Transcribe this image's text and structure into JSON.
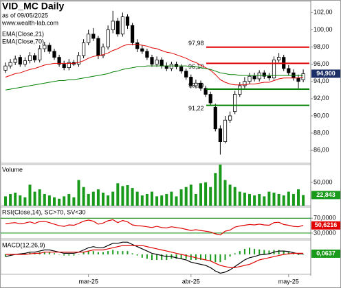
{
  "chart_data": [
    {
      "type": "candlestick",
      "title": "VID_MC Daily",
      "subtitle": "as of 09/05/2025",
      "source": "www.wealth-lab.com",
      "open": [
        95.3,
        95.8,
        96.2,
        96.8,
        96.0,
        96.4,
        97.0,
        96.5,
        97.8,
        98.2,
        97.5,
        96.8,
        96.0,
        95.6,
        96.2,
        96.0,
        97.0,
        98.5,
        99.5,
        99.0,
        97.0,
        98.0,
        100.0,
        101.0,
        99.5,
        101.5,
        100.5,
        98.5,
        97.8,
        97.5,
        96.8,
        96.0,
        96.5,
        95.8,
        95.5,
        96.0,
        95.7,
        95.2,
        94.5,
        93.5,
        93.8,
        93.2,
        92.5,
        91.0,
        88.5,
        87.0,
        89.5,
        90.5,
        92.5,
        93.5,
        94.0,
        94.6,
        94.3,
        95.0,
        94.6,
        94.4,
        96.5,
        96.8,
        95.5,
        95.0,
        94.4,
        94.2
      ],
      "high": [
        96.2,
        96.6,
        97.0,
        97.1,
        96.8,
        97.4,
        97.3,
        98.2,
        98.6,
        98.5,
        97.8,
        97.1,
        96.4,
        96.6,
        96.5,
        97.4,
        98.9,
        100.0,
        100.2,
        99.3,
        98.4,
        100.5,
        102.2,
        101.4,
        102.0,
        101.8,
        100.8,
        98.9,
        98.2,
        97.8,
        97.1,
        96.9,
        96.8,
        96.2,
        96.3,
        96.3,
        96.0,
        95.5,
        94.8,
        94.2,
        94.1,
        93.5,
        92.8,
        91.4,
        88.9,
        90.0,
        90.5,
        92.9,
        93.9,
        94.5,
        95.0,
        95.0,
        95.3,
        95.3,
        95.0,
        96.9,
        97.3,
        97.1,
        95.9,
        95.4,
        94.8,
        95.4
      ],
      "low": [
        95.0,
        95.5,
        95.9,
        95.7,
        95.7,
        96.1,
        96.2,
        96.2,
        97.4,
        97.2,
        96.5,
        95.7,
        95.3,
        95.3,
        95.8,
        95.7,
        96.7,
        98.2,
        98.7,
        96.6,
        96.7,
        97.7,
        99.6,
        99.2,
        99.2,
        100.1,
        98.2,
        97.4,
        97.2,
        96.5,
        95.7,
        95.7,
        95.5,
        95.2,
        95.2,
        95.4,
        94.9,
        94.2,
        93.2,
        93.2,
        92.9,
        92.2,
        91.2,
        88.2,
        85.5,
        86.8,
        89.2,
        90.2,
        92.2,
        93.2,
        93.7,
        94.0,
        94.0,
        94.3,
        94.1,
        94.2,
        96.2,
        95.2,
        94.7,
        94.1,
        93.2,
        93.9
      ],
      "close": [
        95.8,
        96.2,
        96.6,
        96.0,
        96.4,
        97.0,
        96.5,
        97.8,
        98.2,
        97.5,
        96.8,
        96.0,
        95.6,
        96.2,
        96.0,
        97.0,
        98.5,
        99.5,
        99.0,
        97.0,
        98.0,
        100.0,
        101.0,
        99.5,
        101.5,
        100.5,
        98.5,
        97.8,
        97.5,
        96.8,
        96.0,
        96.5,
        95.8,
        95.5,
        96.0,
        95.7,
        95.2,
        94.5,
        93.5,
        93.8,
        93.2,
        92.5,
        91.5,
        88.5,
        87.0,
        89.5,
        90.0,
        92.5,
        93.5,
        94.0,
        94.6,
        94.3,
        95.0,
        94.6,
        94.4,
        96.5,
        96.8,
        95.5,
        95.0,
        94.4,
        94.0,
        94.9
      ],
      "close_labels": [
        null,
        null,
        null,
        null,
        null,
        null,
        null,
        null,
        null,
        null,
        null,
        null,
        null,
        null,
        null,
        null,
        null,
        null,
        null,
        null,
        null,
        null,
        null,
        null,
        null,
        null,
        null,
        null,
        null,
        null,
        null,
        null,
        null,
        null,
        null,
        null,
        null,
        null,
        null,
        null,
        null,
        null,
        null,
        null,
        null,
        null,
        null,
        null,
        null,
        null,
        null,
        null,
        null,
        null,
        null,
        null,
        null,
        null,
        null,
        null,
        null,
        "94,900"
      ],
      "label_color": "#1c2f66",
      "series": [
        {
          "name": "EMA(Close,21)",
          "color": "#e00000",
          "values": [
            94.5,
            94.7,
            94.9,
            95.0,
            95.2,
            95.4,
            95.5,
            95.7,
            95.9,
            96.0,
            96.1,
            96.1,
            96.1,
            96.1,
            96.1,
            96.2,
            96.4,
            96.7,
            96.9,
            97.0,
            97.1,
            97.3,
            97.6,
            97.8,
            98.1,
            98.3,
            98.3,
            98.3,
            98.2,
            98.1,
            97.9,
            97.8,
            97.6,
            97.4,
            97.3,
            97.1,
            96.9,
            96.7,
            96.4,
            96.2,
            95.9,
            95.6,
            95.3,
            94.8,
            94.2,
            93.9,
            93.7,
            93.6,
            93.6,
            93.6,
            93.7,
            93.7,
            93.8,
            93.9,
            93.9,
            94.1,
            94.3,
            94.4,
            94.4,
            94.4,
            94.4,
            94.5
          ]
        },
        {
          "name": "EMA(Close,70)",
          "color": "#008000",
          "values": [
            93.0,
            93.1,
            93.2,
            93.3,
            93.4,
            93.5,
            93.6,
            93.7,
            93.8,
            93.9,
            94.0,
            94.1,
            94.1,
            94.2,
            94.2,
            94.3,
            94.4,
            94.5,
            94.6,
            94.7,
            94.8,
            94.9,
            95.1,
            95.2,
            95.4,
            95.5,
            95.6,
            95.7,
            95.7,
            95.8,
            95.8,
            95.8,
            95.8,
            95.8,
            95.8,
            95.8,
            95.8,
            95.8,
            95.7,
            95.7,
            95.6,
            95.5,
            95.4,
            95.2,
            95.0,
            94.9,
            94.8,
            94.8,
            94.7,
            94.7,
            94.7,
            94.7,
            94.7,
            94.7,
            94.7,
            94.7,
            94.7,
            94.7,
            94.7,
            94.7,
            94.7,
            94.7
          ]
        }
      ],
      "levels": [
        {
          "value": 97.98,
          "label": "97,98",
          "color": "#e00000"
        },
        {
          "value": 96.1,
          "label": "96,10",
          "color": "#e00000"
        },
        {
          "value": 93.1,
          "label": "93,10",
          "color": "#008000"
        },
        {
          "value": 91.22,
          "label": "91,22",
          "color": "#008000"
        }
      ],
      "ylim": [
        84.5,
        103.3
      ],
      "yticks": [
        {
          "value": 86,
          "label": "86,00"
        },
        {
          "value": 88,
          "label": "88,00"
        },
        {
          "value": 90,
          "label": "90,00"
        },
        {
          "value": 92,
          "label": "92,00"
        },
        {
          "value": 94,
          "label": "94,00"
        },
        {
          "value": 96,
          "label": "96,00"
        },
        {
          "value": 98,
          "label": "98,00"
        },
        {
          "value": 100,
          "label": "100,00"
        },
        {
          "value": 102,
          "label": "102,00"
        }
      ],
      "grid": false
    },
    {
      "type": "bar",
      "title": "Volume",
      "color": "#1a9a1a",
      "label_color": "#1a9a1a",
      "values": [
        20,
        25,
        28,
        22,
        18,
        45,
        30,
        35,
        25,
        22,
        18,
        15,
        20,
        25,
        18,
        55,
        40,
        25,
        30,
        35,
        28,
        22,
        30,
        48,
        42,
        44,
        38,
        30,
        22,
        25,
        30,
        20,
        22,
        25,
        30,
        20,
        35,
        40,
        45,
        25,
        48,
        50,
        40,
        70,
        88,
        55,
        45,
        40,
        30,
        28,
        25,
        22,
        25,
        20,
        30,
        28,
        25,
        22,
        30,
        25,
        35,
        22.843
      ],
      "value_labels": [
        null,
        null,
        null,
        null,
        null,
        null,
        null,
        null,
        null,
        null,
        null,
        null,
        null,
        null,
        null,
        null,
        null,
        null,
        null,
        null,
        null,
        null,
        null,
        null,
        null,
        null,
        null,
        null,
        null,
        null,
        null,
        null,
        null,
        null,
        null,
        null,
        null,
        null,
        null,
        null,
        null,
        null,
        null,
        null,
        null,
        null,
        null,
        null,
        null,
        null,
        null,
        null,
        null,
        null,
        null,
        null,
        null,
        null,
        null,
        null,
        null,
        "22,843"
      ],
      "ylim": [
        0,
        88
      ],
      "yticks": [
        {
          "value": 50,
          "label": "50,000"
        }
      ],
      "grid": false
    },
    {
      "type": "line",
      "title": "RSI(Close,14), SC>70, SV<30",
      "series": [
        {
          "color": "#e00000",
          "label_color": "#e00000",
          "values": [
            55,
            57,
            58,
            55,
            57,
            60,
            56,
            61,
            62,
            58,
            54,
            50,
            48,
            52,
            51,
            56,
            62,
            65,
            62,
            54,
            57,
            63,
            66,
            58,
            64,
            60,
            52,
            50,
            49,
            47,
            45,
            48,
            45,
            44,
            47,
            45,
            43,
            40,
            37,
            39,
            37,
            35,
            33,
            28,
            25,
            35,
            38,
            46,
            49,
            51,
            53,
            52,
            54,
            52,
            51,
            58,
            59,
            53,
            51,
            48,
            47,
            50.6216
          ],
          "value_labels": [
            null,
            null,
            null,
            null,
            null,
            null,
            null,
            null,
            null,
            null,
            null,
            null,
            null,
            null,
            null,
            null,
            null,
            null,
            null,
            null,
            null,
            null,
            null,
            null,
            null,
            null,
            null,
            null,
            null,
            null,
            null,
            null,
            null,
            null,
            null,
            null,
            null,
            null,
            null,
            null,
            null,
            null,
            null,
            null,
            null,
            null,
            null,
            null,
            null,
            null,
            null,
            null,
            null,
            null,
            null,
            null,
            null,
            null,
            null,
            null,
            null,
            "50,6216"
          ]
        }
      ],
      "ylim": [
        15,
        100
      ],
      "yticks": [
        {
          "value": 30,
          "label": "30,0000"
        },
        {
          "value": 70,
          "label": "70,0000"
        }
      ],
      "grid": true,
      "grid_color": "#008000"
    },
    {
      "type": "line",
      "title": "MACD(12,26,9)",
      "categories": [
        null,
        null,
        null,
        null,
        null,
        null,
        null,
        null,
        null,
        null,
        null,
        null,
        null,
        null,
        null,
        null,
        null,
        "mar-25",
        null,
        null,
        null,
        null,
        null,
        null,
        null,
        null,
        null,
        null,
        null,
        null,
        null,
        null,
        null,
        null,
        null,
        null,
        null,
        null,
        "abr-25",
        null,
        null,
        null,
        null,
        null,
        null,
        null,
        null,
        null,
        null,
        null,
        null,
        null,
        null,
        null,
        null,
        null,
        null,
        null,
        "may-25",
        null,
        null,
        null
      ],
      "histogram": {
        "color": "#1a9a1a",
        "values": [
          -0.2,
          -0.1,
          0.0,
          0.05,
          0.1,
          0.15,
          0.1,
          0.2,
          0.2,
          0.2,
          0.1,
          0.0,
          -0.1,
          -0.1,
          -0.1,
          0.0,
          0.2,
          0.3,
          0.3,
          0.2,
          0.2,
          0.3,
          0.4,
          0.3,
          0.3,
          0.3,
          0.1,
          -0.1,
          -0.3,
          -0.4,
          -0.5,
          -0.5,
          -0.5,
          -0.5,
          -0.4,
          -0.4,
          -0.4,
          -0.4,
          -0.5,
          -0.5,
          -0.5,
          -0.5,
          -0.6,
          -0.7,
          -0.7,
          -0.5,
          -0.2,
          0.1,
          0.3,
          0.5,
          0.6,
          0.5,
          0.45,
          0.4,
          0.35,
          0.4,
          0.4,
          0.3,
          0.2,
          0.05,
          -0.05,
          -0.04
        ]
      },
      "series": [
        {
          "color": "#000000",
          "label_color": "#1a9a1a",
          "values": [
            -0.2,
            -0.1,
            0.0,
            0.05,
            0.1,
            0.2,
            0.2,
            0.3,
            0.4,
            0.4,
            0.3,
            0.2,
            0.1,
            0.1,
            0.1,
            0.2,
            0.4,
            0.6,
            0.7,
            0.6,
            0.6,
            0.8,
            1.0,
            1.0,
            1.1,
            1.1,
            0.9,
            0.7,
            0.5,
            0.3,
            0.1,
            0.0,
            -0.1,
            -0.2,
            -0.2,
            -0.3,
            -0.4,
            -0.5,
            -0.7,
            -0.8,
            -0.9,
            -1.0,
            -1.2,
            -1.5,
            -1.7,
            -1.6,
            -1.4,
            -1.1,
            -0.8,
            -0.5,
            -0.3,
            -0.2,
            -0.05,
            0.0,
            0.05,
            0.2,
            0.3,
            0.3,
            0.25,
            0.15,
            0.05,
            0.0637
          ],
          "value_labels": [
            null,
            null,
            null,
            null,
            null,
            null,
            null,
            null,
            null,
            null,
            null,
            null,
            null,
            null,
            null,
            null,
            null,
            null,
            null,
            null,
            null,
            null,
            null,
            null,
            null,
            null,
            null,
            null,
            null,
            null,
            null,
            null,
            null,
            null,
            null,
            null,
            null,
            null,
            null,
            null,
            null,
            null,
            null,
            null,
            null,
            null,
            null,
            null,
            null,
            null,
            null,
            null,
            null,
            null,
            null,
            null,
            null,
            null,
            null,
            null,
            null,
            "0,0637"
          ]
        },
        {
          "color": "#e00000",
          "values": [
            0.0,
            0.0,
            0.0,
            0.0,
            0.0,
            0.05,
            0.1,
            0.1,
            0.2,
            0.2,
            0.2,
            0.2,
            0.2,
            0.2,
            0.2,
            0.2,
            0.2,
            0.3,
            0.4,
            0.4,
            0.4,
            0.5,
            0.6,
            0.7,
            0.8,
            0.8,
            0.8,
            0.8,
            0.8,
            0.7,
            0.6,
            0.5,
            0.4,
            0.3,
            0.2,
            0.1,
            0.0,
            -0.1,
            -0.2,
            -0.3,
            -0.4,
            -0.5,
            -0.6,
            -0.8,
            -1.0,
            -1.1,
            -1.2,
            -1.2,
            -1.1,
            -1.0,
            -0.9,
            -0.7,
            -0.5,
            -0.4,
            -0.3,
            -0.2,
            -0.1,
            0.0,
            0.05,
            0.1,
            0.1,
            0.1
          ]
        }
      ],
      "ylim": [
        -1.8,
        1.3
      ],
      "grid": false
    }
  ]
}
